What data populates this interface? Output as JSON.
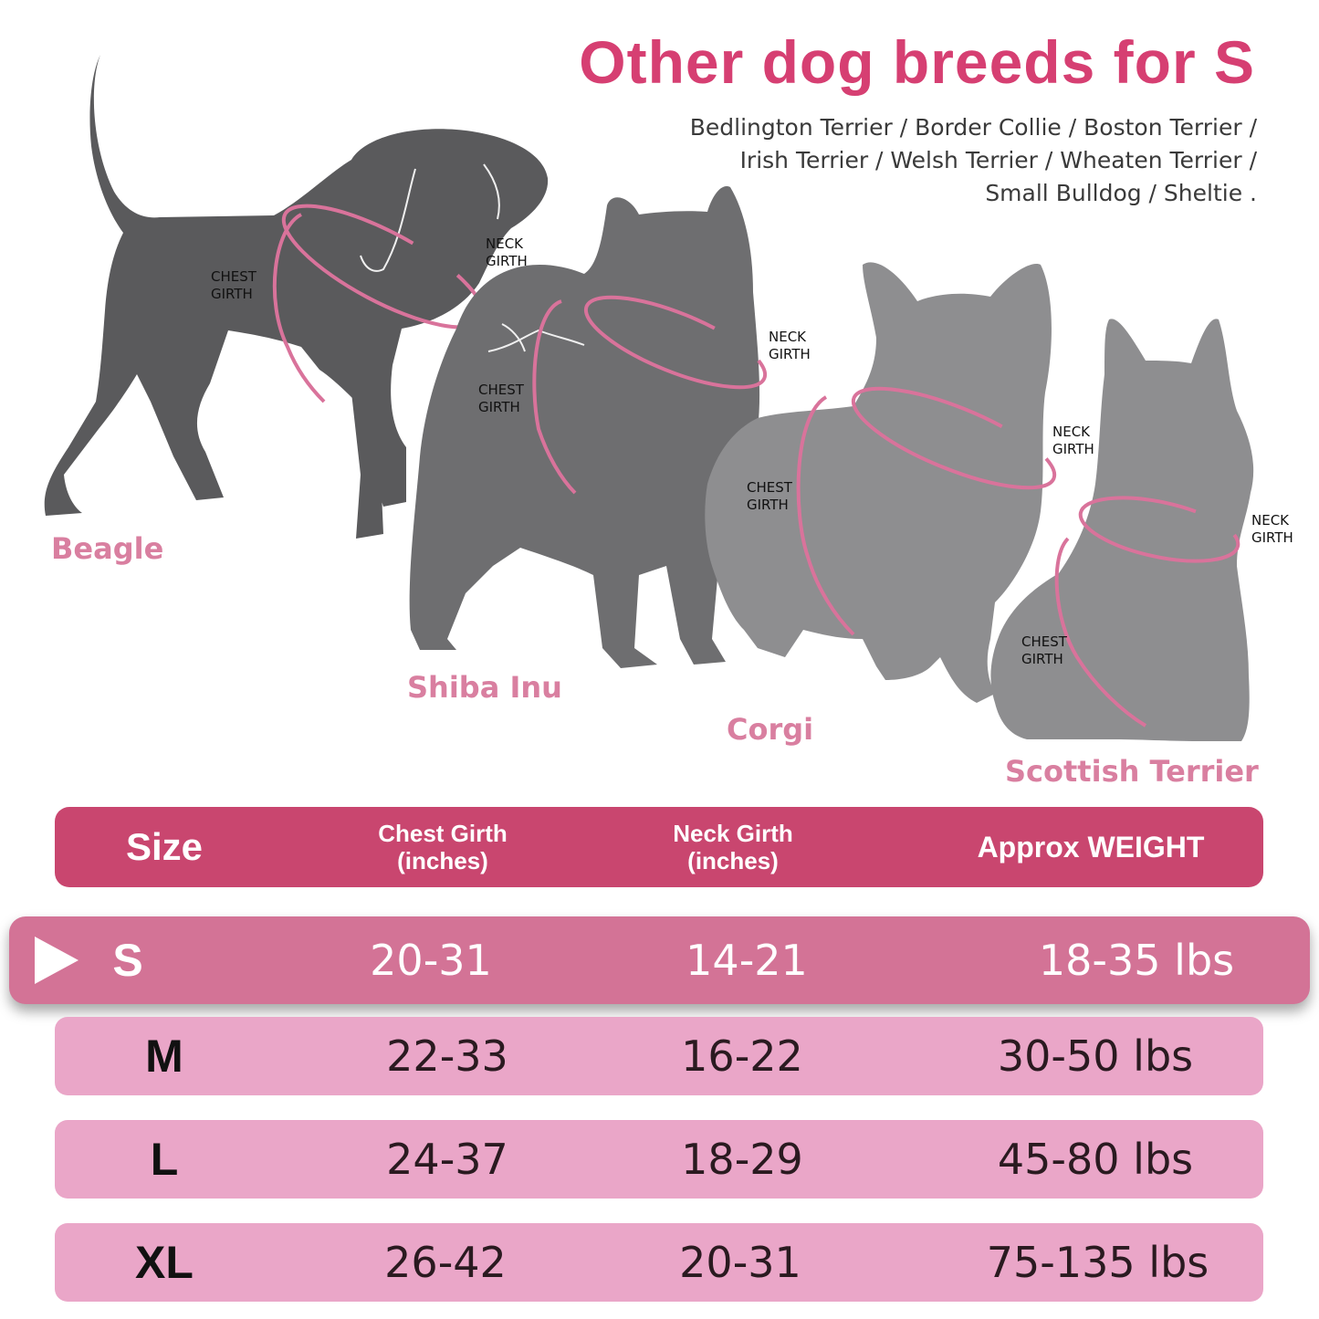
{
  "title": "Other dog breeds for S",
  "breeds_lines": [
    "Bedlington Terrier / Border Collie / Boston Terrier /",
    "Irish Terrier / Welsh Terrier / Wheaten Terrier /",
    "Small Bulldog / Sheltie ."
  ],
  "dogs": {
    "beagle": {
      "name": "Beagle",
      "chest": "CHEST\nGIRTH",
      "neck": "NECK\nGIRTH"
    },
    "shiba": {
      "name": "Shiba Inu",
      "chest": "CHEST\nGIRTH",
      "neck": "NECK\nGIRTH"
    },
    "corgi": {
      "name": "Corgi",
      "chest": "CHEST\nGIRTH",
      "neck": "NECK\nGIRTH"
    },
    "scottie": {
      "name": "Scottish Terrier",
      "chest": "CHEST\nGIRTH",
      "neck": "NECK\nGIRTH"
    }
  },
  "table": {
    "headers": {
      "size": "Size",
      "chest": "Chest Girth\n(inches)",
      "neck": "Neck Girth\n(inches)",
      "weight": "Approx WEIGHT"
    },
    "rows": [
      {
        "size": "S",
        "chest": "20-31",
        "neck": "14-21",
        "weight": "18-35 lbs",
        "highlighted": true
      },
      {
        "size": "M",
        "chest": "22-33",
        "neck": "16-22",
        "weight": "30-50 lbs"
      },
      {
        "size": "L",
        "chest": "24-37",
        "neck": "18-29",
        "weight": "45-80 lbs"
      },
      {
        "size": "XL",
        "chest": "26-42",
        "neck": "20-31",
        "weight": "75-135 lbs"
      }
    ]
  },
  "colors": {
    "accent": "#d63f72",
    "header_bg": "#c9466f",
    "active_row": "#d37396",
    "row_bg": "#eaa6c8",
    "label_pink": "#d97fa0"
  }
}
